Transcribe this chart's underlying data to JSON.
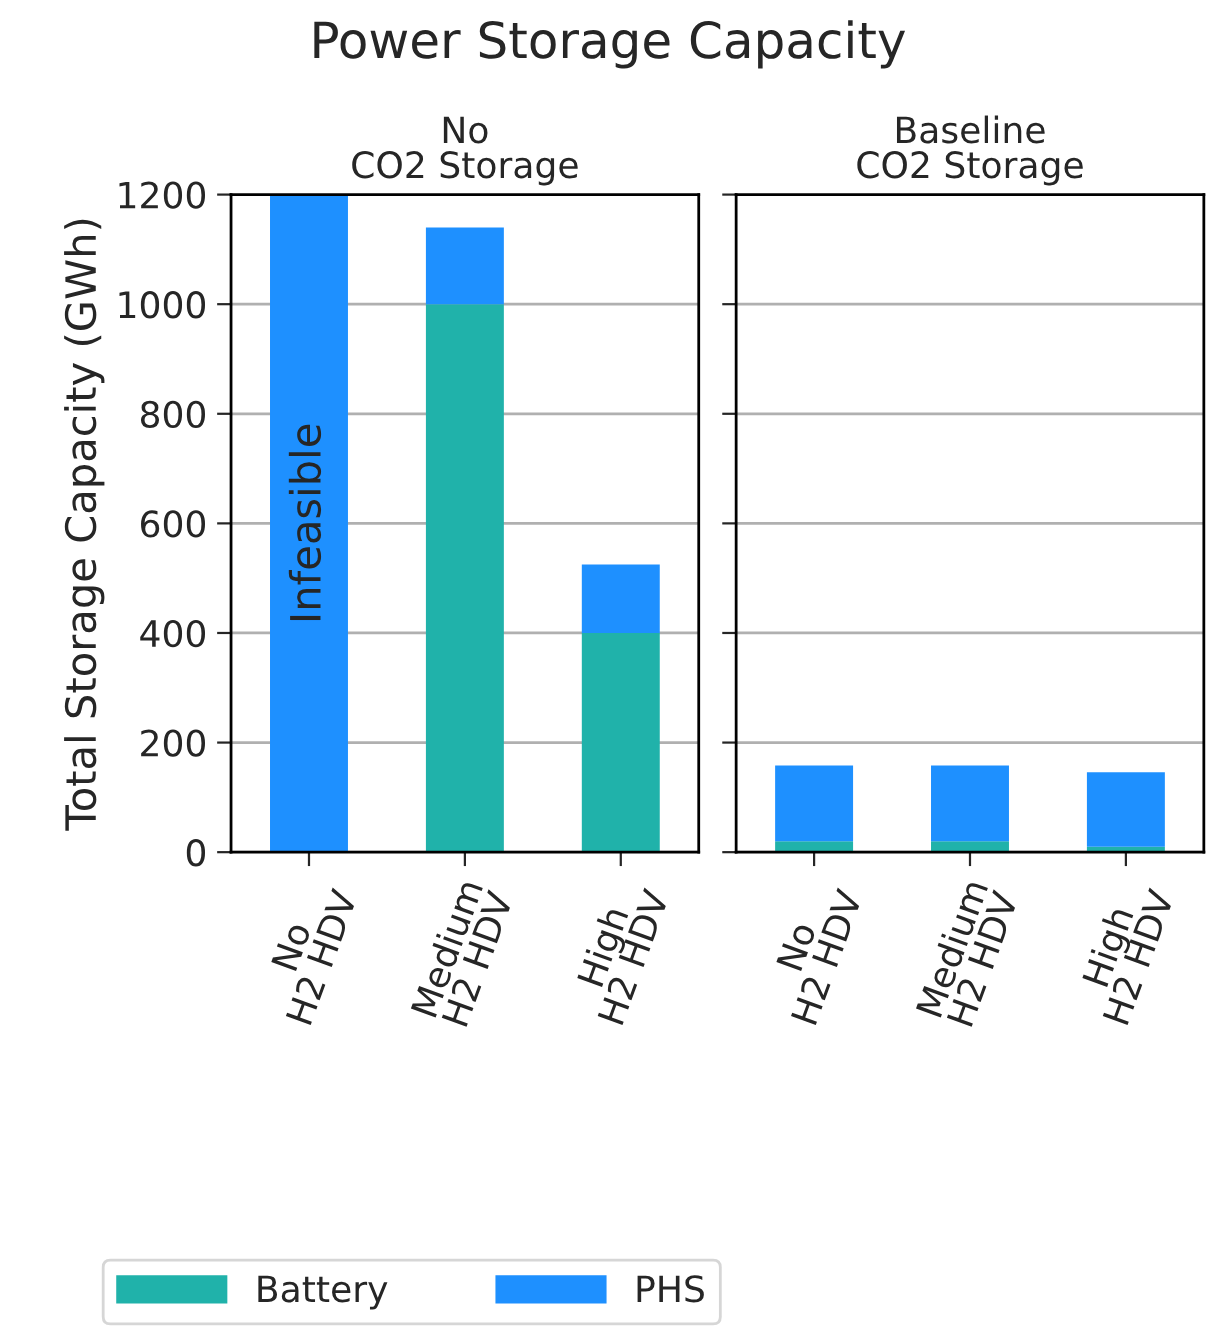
{
  "chart_data": [
    {
      "type": "bar",
      "title": "No\nCO2 Storage",
      "ylabel": "Total Storage Capacity (GWh)",
      "annotations": [
        "Power Storage Capacity",
        "Infeasible"
      ],
      "categories": [
        "No\nH2 HDV",
        "Medium\nH2 HDV",
        "High\nH2 HDV"
      ],
      "stacked": true,
      "series": [
        {
          "name": "Battery",
          "color": "#20b2aa",
          "values": [
            0,
            1000,
            400
          ]
        },
        {
          "name": "PHS",
          "color": "#1e90ff",
          "values": [
            1200,
            140,
            125
          ]
        }
      ],
      "ylim": [
        0,
        1200
      ],
      "yticks": [
        0,
        200,
        400,
        600,
        800,
        1000,
        1200
      ],
      "grid": "y",
      "legend": "bottom left"
    },
    {
      "type": "bar",
      "title": "Baseline\nCO2 Storage",
      "categories": [
        "No\nH2 HDV",
        "Medium\nH2 HDV",
        "High\nH2 HDV"
      ],
      "stacked": true,
      "series": [
        {
          "color": "#20b2aa",
          "values": [
            20,
            20,
            10
          ]
        },
        {
          "color": "#1e90ff",
          "values": [
            138,
            138,
            136
          ]
        }
      ],
      "ylim": [
        0,
        1200
      ],
      "yticks": [
        0,
        200,
        400,
        600,
        800,
        1000,
        1200
      ],
      "grid": "y",
      "tick_labels": "x"
    }
  ]
}
